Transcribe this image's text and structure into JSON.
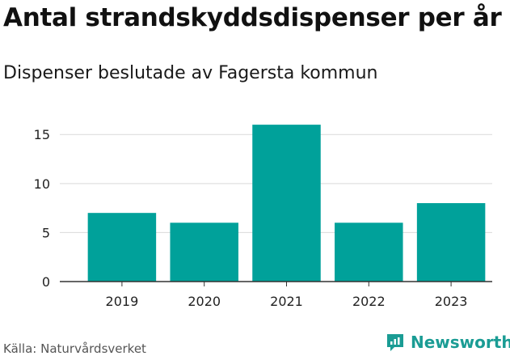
{
  "header": {
    "title": "Antal strandskyddsdispenser per år",
    "subtitle": "Dispenser beslutade av Fagersta kommun"
  },
  "footer": {
    "source": "Källa: Naturvårdsverket",
    "brand": "Newsworthy",
    "brand_icon": "newsworthy-logo-icon"
  },
  "colors": {
    "bar": "#00a19a",
    "grid": "#d9d9d9",
    "axis": "#333333",
    "brand": "#1a9c94"
  },
  "chart_data": {
    "type": "bar",
    "title": "Antal strandskyddsdispenser per år",
    "subtitle": "Dispenser beslutade av Fagersta kommun",
    "categories": [
      "2019",
      "2020",
      "2021",
      "2022",
      "2023"
    ],
    "values": [
      7,
      6,
      16,
      6,
      8
    ],
    "ylim": [
      0,
      17
    ],
    "yticks": [
      0,
      5,
      10,
      15
    ],
    "xlabel": "",
    "ylabel": "",
    "grid": true,
    "legend": "none"
  }
}
